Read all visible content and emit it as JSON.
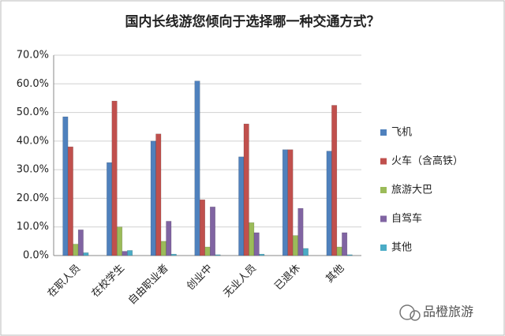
{
  "chart_data": {
    "type": "bar",
    "title": "国内长线游您倾向于选择哪一种交通方式？",
    "categories": [
      "在职人员",
      "在校学生",
      "自由职业者",
      "创业中",
      "无业人员",
      "已退休",
      "其他"
    ],
    "series": [
      {
        "name": "飞机",
        "color": "#4f81bd",
        "values": [
          48.5,
          32.5,
          40,
          61,
          34.5,
          37,
          36.5
        ]
      },
      {
        "name": "火车（含高铁）",
        "color": "#c0504d",
        "values": [
          38,
          54,
          42.5,
          19.5,
          46,
          37,
          52.5
        ]
      },
      {
        "name": "旅游大巴",
        "color": "#9bbb59",
        "values": [
          4,
          10,
          5,
          3,
          11.5,
          7,
          3
        ]
      },
      {
        "name": "自驾车",
        "color": "#8064a2",
        "values": [
          9,
          1.5,
          12,
          17,
          8,
          16.5,
          8
        ]
      },
      {
        "name": "其他",
        "color": "#4bacc6",
        "values": [
          1,
          1.8,
          0.5,
          0.3,
          0.5,
          2.5,
          0.3
        ]
      }
    ],
    "ylim": [
      0,
      70
    ],
    "yticks": [
      {
        "value": 0,
        "label": "0.0%"
      },
      {
        "value": 10,
        "label": "10.0%"
      },
      {
        "value": 20,
        "label": "20.0%"
      },
      {
        "value": 30,
        "label": "30.0%"
      },
      {
        "value": 40,
        "label": "40.0%"
      },
      {
        "value": 50,
        "label": "50.0%"
      },
      {
        "value": 60,
        "label": "60.0%"
      },
      {
        "value": 70,
        "label": "70.0%"
      }
    ],
    "grid": true,
    "legend": "right",
    "watermark": "品橙旅游"
  }
}
